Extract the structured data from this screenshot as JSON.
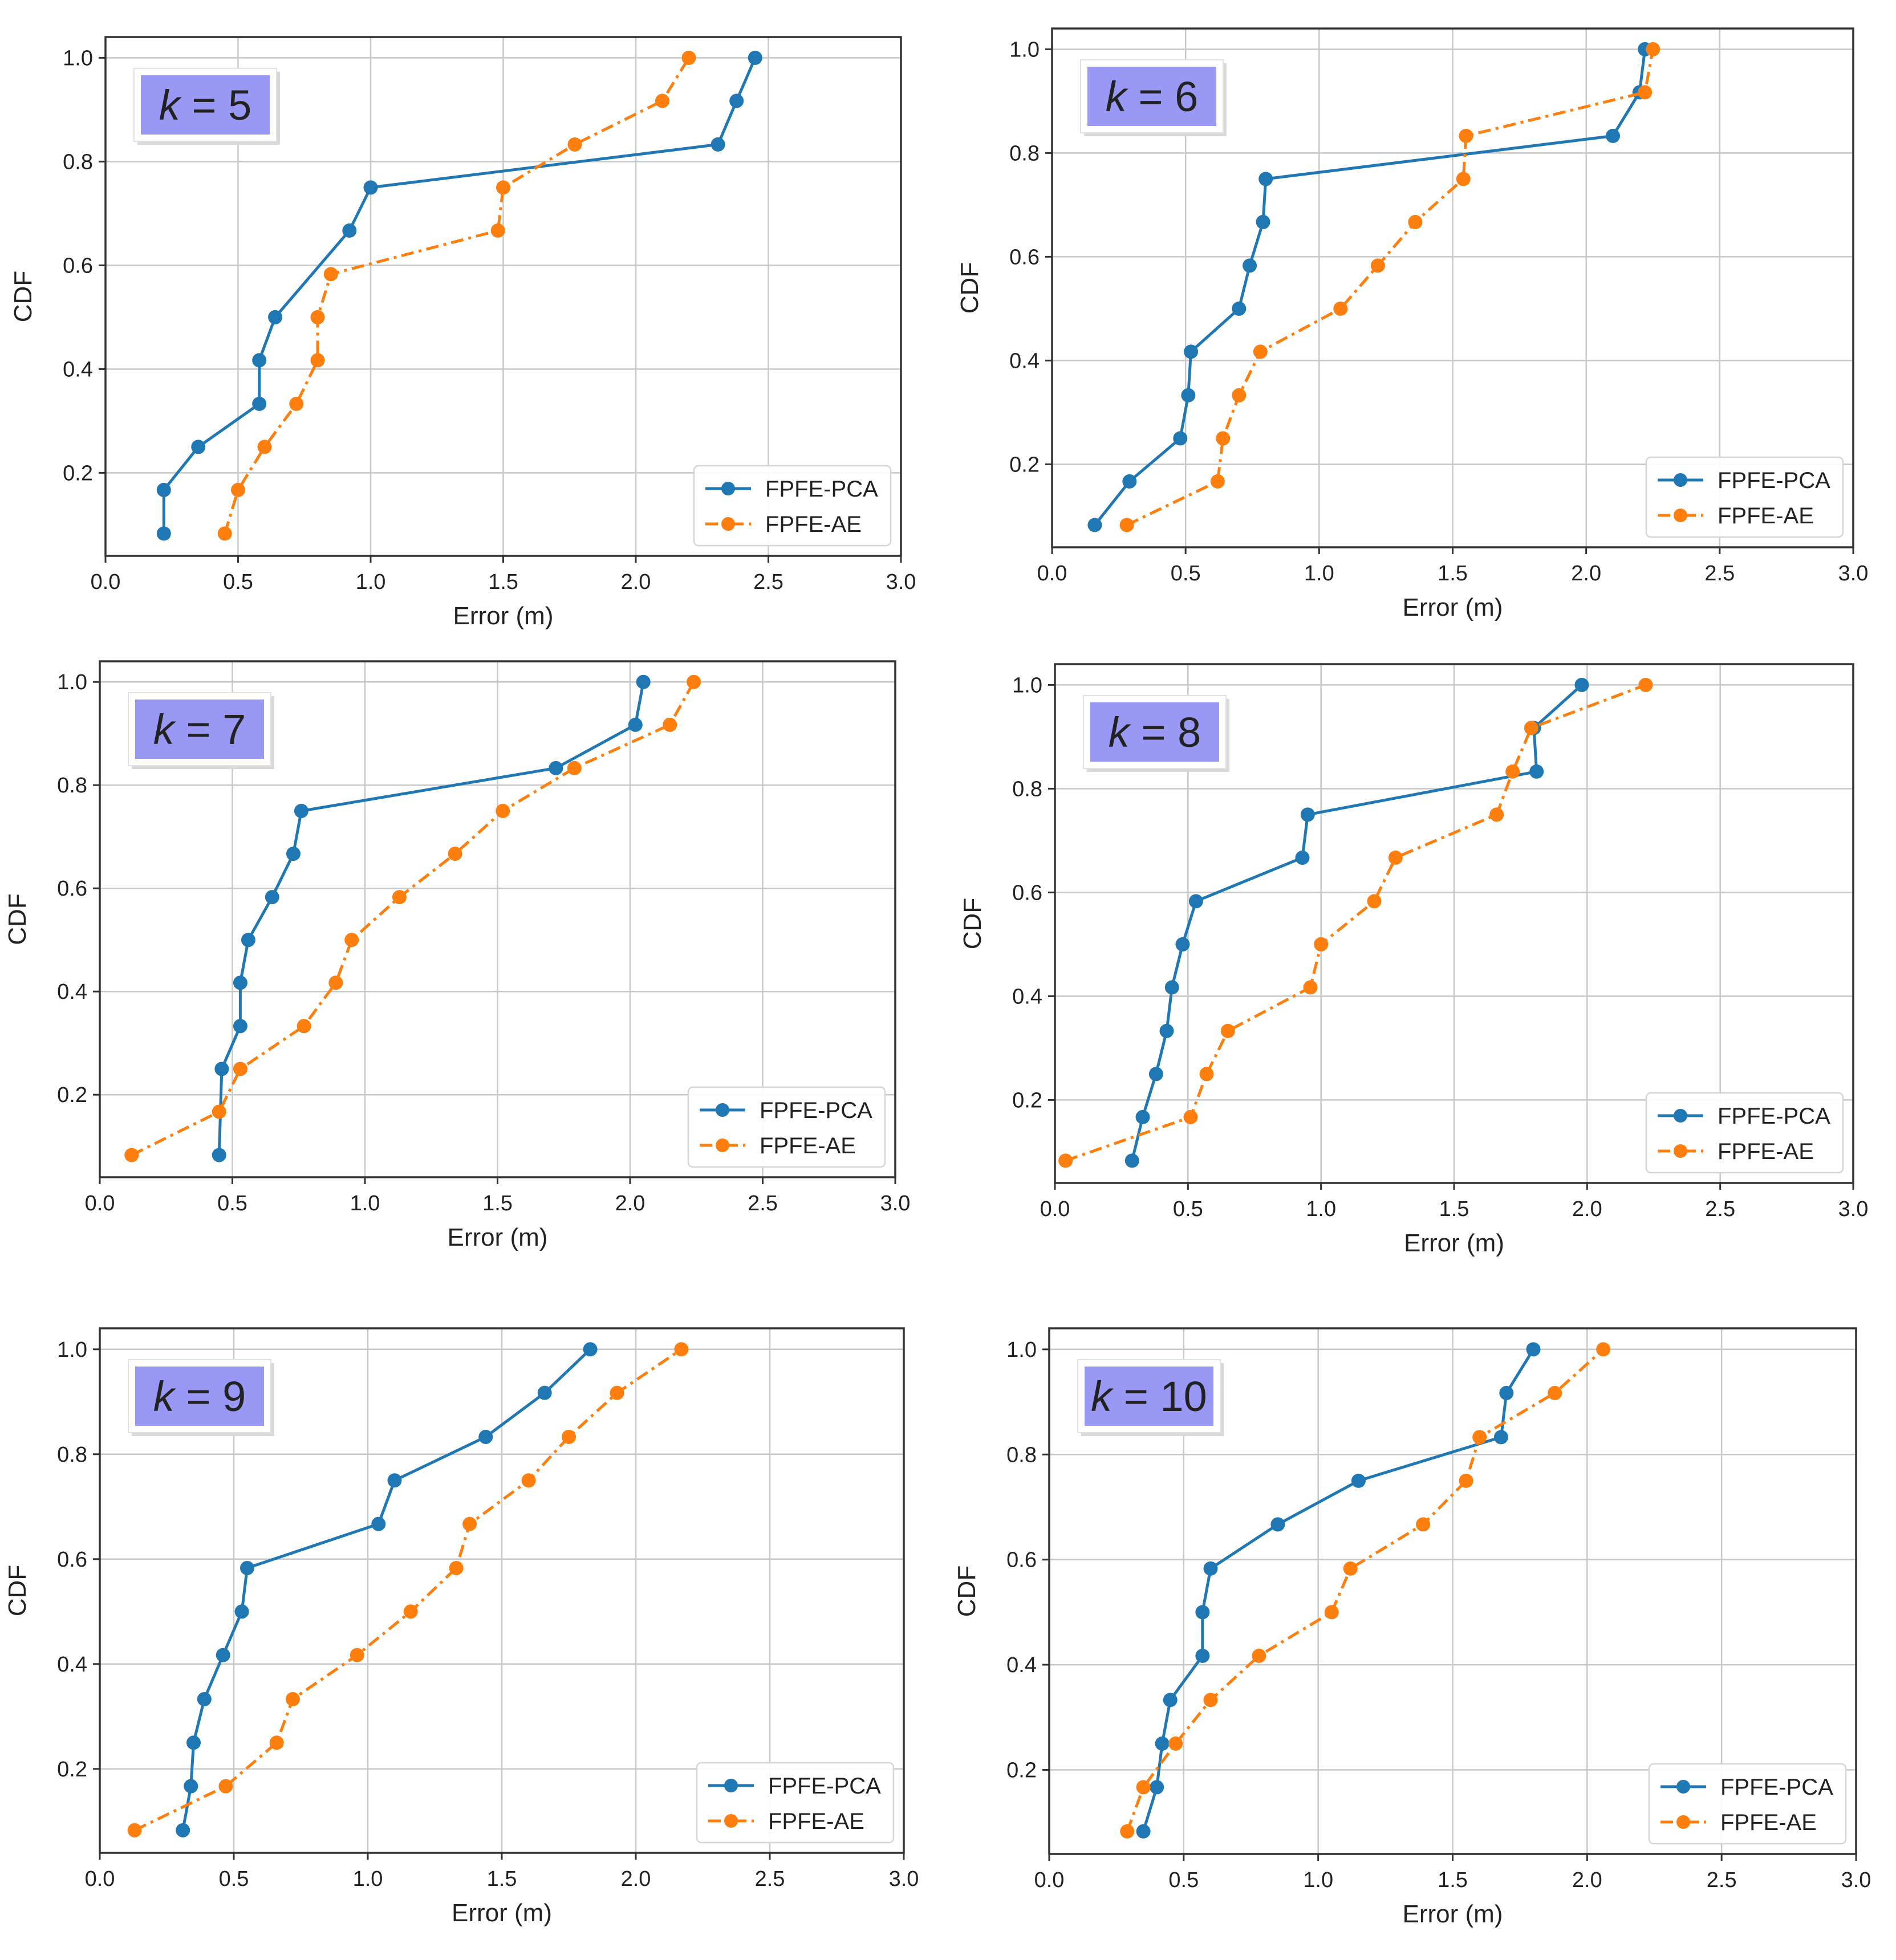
{
  "chart_data": [
    {
      "type": "line",
      "title": "",
      "annotation": "k = 5",
      "annotation_var": "k",
      "annotation_value": "= 5",
      "xlabel": "Error (m)",
      "ylabel": "CDF",
      "xlim": [
        0,
        3
      ],
      "ylim": [
        0.04,
        1.04
      ],
      "xticks": [
        "0.0",
        "0.5",
        "1.0",
        "1.5",
        "2.0",
        "2.5",
        "3.0"
      ],
      "yticks": [
        "0.2",
        "0.4",
        "0.6",
        "0.8",
        "1.0"
      ],
      "grid": true,
      "legend": "bottom-right",
      "series": [
        {
          "name": "FPFE-PCA",
          "color": "#1f77b4",
          "style": "solid",
          "x": [
            0.22,
            0.22,
            0.35,
            0.58,
            0.58,
            0.64,
            0.92,
            1.0,
            2.31,
            2.38,
            2.45
          ],
          "y": [
            0.083,
            0.167,
            0.25,
            0.333,
            0.417,
            0.5,
            0.667,
            0.75,
            0.833,
            0.917,
            1.0
          ]
        },
        {
          "name": "FPFE-AE",
          "color": "#ff7f0e",
          "style": "dashdot",
          "x": [
            0.45,
            0.5,
            0.6,
            0.72,
            0.8,
            0.8,
            0.85,
            1.48,
            1.5,
            1.77,
            2.1,
            2.2
          ],
          "y": [
            0.083,
            0.167,
            0.25,
            0.333,
            0.417,
            0.5,
            0.583,
            0.667,
            0.75,
            0.833,
            0.917,
            1.0
          ]
        }
      ]
    },
    {
      "type": "line",
      "title": "",
      "annotation": "k = 6",
      "annotation_var": "k",
      "annotation_value": "= 6",
      "xlabel": "Error (m)",
      "ylabel": "CDF",
      "xlim": [
        0,
        3
      ],
      "ylim": [
        0.04,
        1.04
      ],
      "xticks": [
        "0.0",
        "0.5",
        "1.0",
        "1.5",
        "2.0",
        "2.5",
        "3.0"
      ],
      "yticks": [
        "0.2",
        "0.4",
        "0.6",
        "0.8",
        "1.0"
      ],
      "grid": true,
      "legend": "bottom-right",
      "series": [
        {
          "name": "FPFE-PCA",
          "color": "#1f77b4",
          "style": "solid",
          "x": [
            0.16,
            0.29,
            0.48,
            0.51,
            0.52,
            0.7,
            0.74,
            0.79,
            0.8,
            2.1,
            2.2,
            2.22
          ],
          "y": [
            0.083,
            0.167,
            0.25,
            0.333,
            0.417,
            0.5,
            0.583,
            0.667,
            0.75,
            0.833,
            0.917,
            1.0
          ]
        },
        {
          "name": "FPFE-AE",
          "color": "#ff7f0e",
          "style": "dashdot",
          "x": [
            0.28,
            0.62,
            0.64,
            0.7,
            0.78,
            1.08,
            1.22,
            1.36,
            1.54,
            1.55,
            2.22,
            2.25
          ],
          "y": [
            0.083,
            0.167,
            0.25,
            0.333,
            0.417,
            0.5,
            0.583,
            0.667,
            0.75,
            0.833,
            0.917,
            1.0
          ]
        }
      ]
    },
    {
      "type": "line",
      "title": "",
      "annotation": "k = 7",
      "annotation_var": "k",
      "annotation_value": "= 7",
      "xlabel": "Error (m)",
      "ylabel": "CDF",
      "xlim": [
        0,
        3
      ],
      "ylim": [
        0.04,
        1.04
      ],
      "xticks": [
        "0.0",
        "0.5",
        "1.0",
        "1.5",
        "2.0",
        "2.5",
        "3.0"
      ],
      "yticks": [
        "0.2",
        "0.4",
        "0.6",
        "0.8",
        "1.0"
      ],
      "grid": true,
      "legend": "bottom-right",
      "series": [
        {
          "name": "FPFE-PCA",
          "color": "#1f77b4",
          "style": "solid",
          "x": [
            0.45,
            0.46,
            0.53,
            0.53,
            0.56,
            0.65,
            0.73,
            0.76,
            1.72,
            2.02,
            2.05
          ],
          "y": [
            0.083,
            0.25,
            0.333,
            0.417,
            0.5,
            0.583,
            0.667,
            0.75,
            0.833,
            0.917,
            1.0
          ]
        },
        {
          "name": "FPFE-AE",
          "color": "#ff7f0e",
          "style": "dashdot",
          "x": [
            0.12,
            0.45,
            0.53,
            0.77,
            0.89,
            0.95,
            1.13,
            1.34,
            1.52,
            1.79,
            2.15,
            2.24
          ],
          "y": [
            0.083,
            0.167,
            0.25,
            0.333,
            0.417,
            0.5,
            0.583,
            0.667,
            0.75,
            0.833,
            0.917,
            1.0
          ]
        }
      ]
    },
    {
      "type": "line",
      "title": "",
      "annotation": "k = 8",
      "annotation_var": "k",
      "annotation_value": "= 8",
      "xlabel": "Error (m)",
      "ylabel": "CDF",
      "xlim": [
        0,
        3
      ],
      "ylim": [
        0.04,
        1.04
      ],
      "xticks": [
        "0.0",
        "0.5",
        "1.0",
        "1.5",
        "2.0",
        "2.5",
        "3.0"
      ],
      "yticks": [
        "0.2",
        "0.4",
        "0.6",
        "0.8",
        "1.0"
      ],
      "grid": true,
      "legend": "bottom-right",
      "series": [
        {
          "name": "FPFE-PCA",
          "color": "#1f77b4",
          "style": "solid",
          "x": [
            0.29,
            0.33,
            0.38,
            0.42,
            0.44,
            0.48,
            0.53,
            0.93,
            0.95,
            1.81,
            1.8,
            1.98
          ],
          "y": [
            0.083,
            0.167,
            0.25,
            0.333,
            0.417,
            0.5,
            0.583,
            0.667,
            0.75,
            0.833,
            0.917,
            1.0
          ]
        },
        {
          "name": "FPFE-AE",
          "color": "#ff7f0e",
          "style": "dashdot",
          "x": [
            0.04,
            0.51,
            0.57,
            0.65,
            0.96,
            1.0,
            1.2,
            1.28,
            1.66,
            1.72,
            1.79,
            2.22
          ],
          "y": [
            0.083,
            0.167,
            0.25,
            0.333,
            0.417,
            0.5,
            0.583,
            0.667,
            0.75,
            0.833,
            0.917,
            1.0
          ]
        }
      ]
    },
    {
      "type": "line",
      "title": "",
      "annotation": "k = 9",
      "annotation_var": "k",
      "annotation_value": "= 9",
      "xlabel": "Error (m)",
      "ylabel": "CDF",
      "xlim": [
        0,
        3
      ],
      "ylim": [
        0.04,
        1.04
      ],
      "xticks": [
        "0.0",
        "0.5",
        "1.0",
        "1.5",
        "2.0",
        "2.5",
        "3.0"
      ],
      "yticks": [
        "0.2",
        "0.4",
        "0.6",
        "0.8",
        "1.0"
      ],
      "grid": true,
      "legend": "bottom-right",
      "series": [
        {
          "name": "FPFE-PCA",
          "color": "#1f77b4",
          "style": "solid",
          "x": [
            0.31,
            0.34,
            0.35,
            0.39,
            0.46,
            0.53,
            0.55,
            1.04,
            1.1,
            1.44,
            1.66,
            1.83
          ],
          "y": [
            0.083,
            0.167,
            0.25,
            0.333,
            0.417,
            0.5,
            0.583,
            0.667,
            0.75,
            0.833,
            0.917,
            1.0
          ]
        },
        {
          "name": "FPFE-AE",
          "color": "#ff7f0e",
          "style": "dashdot",
          "x": [
            0.13,
            0.47,
            0.66,
            0.72,
            0.96,
            1.16,
            1.33,
            1.38,
            1.6,
            1.75,
            1.93,
            2.17
          ],
          "y": [
            0.083,
            0.167,
            0.25,
            0.333,
            0.417,
            0.5,
            0.583,
            0.667,
            0.75,
            0.833,
            0.917,
            1.0
          ]
        }
      ]
    },
    {
      "type": "line",
      "title": "",
      "annotation": "k = 10",
      "annotation_var": "k",
      "annotation_value": "= 10",
      "xlabel": "Error (m)",
      "ylabel": "CDF",
      "xlim": [
        0,
        3
      ],
      "ylim": [
        0.04,
        1.04
      ],
      "xticks": [
        "0.0",
        "0.5",
        "1.0",
        "1.5",
        "2.0",
        "2.5",
        "3.0"
      ],
      "yticks": [
        "0.2",
        "0.4",
        "0.6",
        "0.8",
        "1.0"
      ],
      "grid": true,
      "legend": "bottom-right",
      "series": [
        {
          "name": "FPFE-PCA",
          "color": "#1f77b4",
          "style": "solid",
          "x": [
            0.35,
            0.4,
            0.42,
            0.45,
            0.57,
            0.57,
            0.6,
            0.85,
            1.15,
            1.68,
            1.7,
            1.8
          ],
          "y": [
            0.083,
            0.167,
            0.25,
            0.333,
            0.417,
            0.5,
            0.583,
            0.667,
            0.75,
            0.833,
            0.917,
            1.0
          ]
        },
        {
          "name": "FPFE-AE",
          "color": "#ff7f0e",
          "style": "dashdot",
          "x": [
            0.29,
            0.35,
            0.47,
            0.6,
            0.78,
            1.05,
            1.12,
            1.39,
            1.55,
            1.6,
            1.88,
            2.06
          ],
          "y": [
            0.083,
            0.167,
            0.25,
            0.333,
            0.417,
            0.5,
            0.583,
            0.667,
            0.75,
            0.833,
            0.917,
            1.0
          ]
        }
      ]
    }
  ]
}
